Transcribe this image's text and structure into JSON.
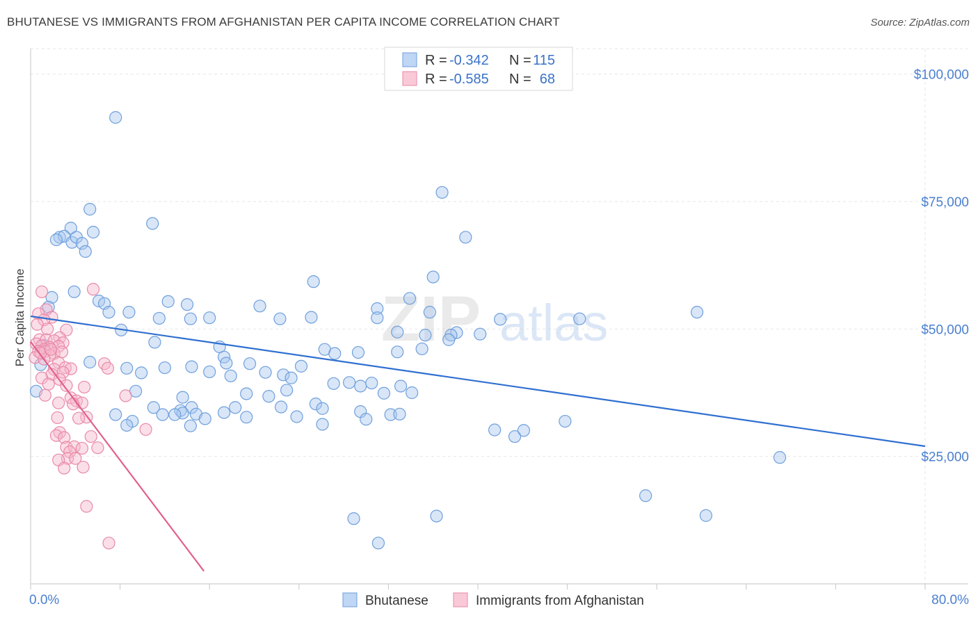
{
  "title": "BHUTANESE VS IMMIGRANTS FROM AFGHANISTAN PER CAPITA INCOME CORRELATION CHART",
  "source": "Source: ZipAtlas.com",
  "watermark": {
    "zip": "ZIP",
    "atlas": "atlas"
  },
  "legend": {
    "rows": [
      {
        "r_label": "R =",
        "r_value": "-0.342",
        "n_label": "N =",
        "n_value": "115",
        "color": "#a9c8f0",
        "stroke": "#6f9fdc"
      },
      {
        "r_label": "R =",
        "r_value": "-0.585",
        "n_label": "N =",
        "n_value": "68",
        "color": "#f7b7cb",
        "stroke": "#e889a8"
      }
    ]
  },
  "bottom_legend": [
    {
      "label": "Bhutanese",
      "color": "#a9c8f0",
      "stroke": "#6f9fdc"
    },
    {
      "label": "Immigrants from Afghanistan",
      "color": "#f7b7cb",
      "stroke": "#e889a8"
    }
  ],
  "chart_data": {
    "type": "scatter",
    "title": "BHUTANESE VS IMMIGRANTS FROM AFGHANISTAN PER CAPITA INCOME CORRELATION CHART",
    "xlabel": "",
    "ylabel": "Per Capita Income",
    "xlim": [
      0,
      80
    ],
    "ylim": [
      0,
      105000
    ],
    "x_tick_labels": [
      "0.0%",
      "80.0%"
    ],
    "y_ticks": [
      25000,
      50000,
      75000,
      100000
    ],
    "y_tick_labels": [
      "$25,000",
      "$50,000",
      "$75,000",
      "$100,000"
    ],
    "grid": true,
    "series": [
      {
        "name": "Bhutanese",
        "color": "#a9c8f0",
        "stroke": "#6f9fdc",
        "trend": {
          "x": [
            0,
            80
          ],
          "y": [
            52500,
            27000
          ],
          "color": "#2f6fd0"
        },
        "points": [
          [
            7.6,
            91500
          ],
          [
            36.8,
            76800
          ],
          [
            5.3,
            73500
          ],
          [
            10.9,
            70700
          ],
          [
            3.6,
            69800
          ],
          [
            5.6,
            69000
          ],
          [
            2.6,
            68000
          ],
          [
            3.0,
            68200
          ],
          [
            2.3,
            67500
          ],
          [
            3.7,
            67000
          ],
          [
            4.1,
            68000
          ],
          [
            4.6,
            66800
          ],
          [
            4.9,
            65200
          ],
          [
            38.9,
            68000
          ],
          [
            36.0,
            60200
          ],
          [
            25.3,
            59300
          ],
          [
            1.9,
            56200
          ],
          [
            3.9,
            57300
          ],
          [
            33.9,
            56000
          ],
          [
            12.3,
            55400
          ],
          [
            6.1,
            55500
          ],
          [
            6.6,
            55000
          ],
          [
            1.6,
            54300
          ],
          [
            20.5,
            54500
          ],
          [
            14.0,
            54800
          ],
          [
            31.0,
            54000
          ],
          [
            35.7,
            53300
          ],
          [
            59.6,
            53300
          ],
          [
            7.0,
            53300
          ],
          [
            8.8,
            53300
          ],
          [
            11.5,
            52100
          ],
          [
            25.1,
            52300
          ],
          [
            16.0,
            52200
          ],
          [
            22.3,
            52000
          ],
          [
            14.3,
            52000
          ],
          [
            49.1,
            52000
          ],
          [
            31.0,
            52200
          ],
          [
            42.0,
            51900
          ],
          [
            8.1,
            49800
          ],
          [
            32.8,
            49400
          ],
          [
            35.3,
            48800
          ],
          [
            38.1,
            49300
          ],
          [
            37.6,
            48800
          ],
          [
            40.2,
            49000
          ],
          [
            37.4,
            47900
          ],
          [
            11.1,
            47400
          ],
          [
            16.9,
            46500
          ],
          [
            26.3,
            46000
          ],
          [
            29.3,
            45400
          ],
          [
            35.0,
            46100
          ],
          [
            5.3,
            43500
          ],
          [
            17.3,
            44500
          ],
          [
            17.5,
            43300
          ],
          [
            19.6,
            43200
          ],
          [
            14.4,
            42600
          ],
          [
            16.0,
            41600
          ],
          [
            27.2,
            45200
          ],
          [
            32.8,
            45500
          ],
          [
            9.9,
            41400
          ],
          [
            12.0,
            42400
          ],
          [
            8.6,
            42300
          ],
          [
            17.9,
            40800
          ],
          [
            21.0,
            41500
          ],
          [
            22.6,
            41000
          ],
          [
            24.2,
            42700
          ],
          [
            23.3,
            40400
          ],
          [
            28.5,
            39500
          ],
          [
            29.5,
            38800
          ],
          [
            30.5,
            39400
          ],
          [
            27.1,
            39300
          ],
          [
            33.1,
            38800
          ],
          [
            31.6,
            37400
          ],
          [
            34.1,
            37500
          ],
          [
            13.6,
            36600
          ],
          [
            19.3,
            37300
          ],
          [
            21.3,
            36800
          ],
          [
            22.9,
            38000
          ],
          [
            25.5,
            35300
          ],
          [
            18.3,
            34600
          ],
          [
            14.4,
            34600
          ],
          [
            9.4,
            37800
          ],
          [
            11.0,
            34600
          ],
          [
            13.4,
            34000
          ],
          [
            11.8,
            33200
          ],
          [
            13.6,
            33500
          ],
          [
            17.3,
            33600
          ],
          [
            22.4,
            34700
          ],
          [
            26.1,
            34400
          ],
          [
            29.5,
            33800
          ],
          [
            32.2,
            33200
          ],
          [
            14.8,
            33300
          ],
          [
            9.1,
            31900
          ],
          [
            7.6,
            33200
          ],
          [
            15.6,
            32400
          ],
          [
            19.3,
            32700
          ],
          [
            23.8,
            32800
          ],
          [
            26.1,
            31300
          ],
          [
            30.0,
            32300
          ],
          [
            33.0,
            33300
          ],
          [
            41.5,
            30200
          ],
          [
            44.1,
            30100
          ],
          [
            43.3,
            28900
          ],
          [
            47.8,
            31900
          ],
          [
            14.3,
            31000
          ],
          [
            8.6,
            31100
          ],
          [
            12.9,
            33200
          ],
          [
            67.0,
            24800
          ],
          [
            55.0,
            17300
          ],
          [
            60.4,
            13400
          ],
          [
            36.3,
            13300
          ],
          [
            31.1,
            8000
          ],
          [
            28.9,
            12800
          ],
          [
            0.5,
            37800
          ],
          [
            1.2,
            46800
          ],
          [
            0.9,
            43000
          ]
        ]
      },
      {
        "name": "Immigrants from Afghanistan",
        "color": "#f7b7cb",
        "stroke": "#e889a8",
        "trend": {
          "x": [
            0,
            15.5
          ],
          "y": [
            47500,
            2500
          ],
          "color": "#e0608f"
        },
        "points": [
          [
            5.6,
            57800
          ],
          [
            1.0,
            57300
          ],
          [
            1.4,
            53800
          ],
          [
            0.7,
            53000
          ],
          [
            1.9,
            52300
          ],
          [
            1.2,
            51800
          ],
          [
            0.6,
            50900
          ],
          [
            1.5,
            50000
          ],
          [
            3.2,
            49800
          ],
          [
            2.6,
            48300
          ],
          [
            0.8,
            47900
          ],
          [
            1.4,
            47900
          ],
          [
            2.1,
            47700
          ],
          [
            2.9,
            47300
          ],
          [
            0.5,
            47100
          ],
          [
            1.0,
            46700
          ],
          [
            1.7,
            46400
          ],
          [
            2.5,
            46600
          ],
          [
            1.2,
            46000
          ],
          [
            0.7,
            45600
          ],
          [
            1.3,
            45600
          ],
          [
            2.1,
            45200
          ],
          [
            2.8,
            45500
          ],
          [
            1.7,
            44800
          ],
          [
            0.4,
            44400
          ],
          [
            1.2,
            44100
          ],
          [
            2.5,
            43400
          ],
          [
            6.6,
            43200
          ],
          [
            2.1,
            42100
          ],
          [
            3.1,
            42400
          ],
          [
            3.6,
            42200
          ],
          [
            6.9,
            42300
          ],
          [
            2.9,
            41500
          ],
          [
            1.9,
            41100
          ],
          [
            1.0,
            40400
          ],
          [
            2.6,
            40100
          ],
          [
            1.6,
            39200
          ],
          [
            3.2,
            38900
          ],
          [
            4.8,
            38600
          ],
          [
            1.3,
            37000
          ],
          [
            8.5,
            36900
          ],
          [
            3.6,
            36500
          ],
          [
            4.1,
            35900
          ],
          [
            2.5,
            35500
          ],
          [
            4.6,
            35500
          ],
          [
            3.8,
            35300
          ],
          [
            2.4,
            32600
          ],
          [
            5.0,
            32700
          ],
          [
            4.3,
            32500
          ],
          [
            10.3,
            30300
          ],
          [
            2.6,
            29700
          ],
          [
            2.3,
            29100
          ],
          [
            3.0,
            28700
          ],
          [
            5.4,
            28900
          ],
          [
            3.2,
            26800
          ],
          [
            3.9,
            26900
          ],
          [
            4.6,
            26600
          ],
          [
            6.0,
            26700
          ],
          [
            3.5,
            25900
          ],
          [
            3.3,
            24600
          ],
          [
            4.0,
            24600
          ],
          [
            2.5,
            24300
          ],
          [
            3.0,
            22700
          ],
          [
            4.7,
            22900
          ],
          [
            5.0,
            15200
          ],
          [
            7.0,
            8000
          ],
          [
            0.9,
            45300
          ],
          [
            1.8,
            46000
          ]
        ]
      }
    ]
  }
}
